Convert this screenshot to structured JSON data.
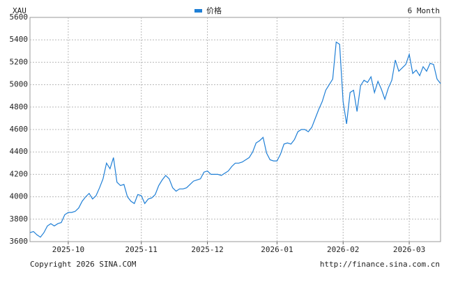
{
  "chart_data": {
    "type": "line",
    "title": "XAU",
    "period": "6 Month",
    "categories": [
      null,
      null,
      null,
      null,
      null,
      null,
      null,
      null,
      null,
      null,
      null,
      "2025-10",
      null,
      null,
      null,
      null,
      null,
      null,
      null,
      null,
      null,
      null,
      null,
      null,
      null,
      null,
      null,
      null,
      null,
      null,
      null,
      null,
      "2025-11",
      null,
      null,
      null,
      null,
      null,
      null,
      null,
      null,
      null,
      null,
      null,
      null,
      null,
      null,
      null,
      null,
      null,
      null,
      "2025-12",
      null,
      null,
      null,
      null,
      null,
      null,
      null,
      null,
      null,
      null,
      null,
      null,
      null,
      null,
      null,
      null,
      null,
      null,
      null,
      "2026-01",
      null,
      null,
      null,
      null,
      null,
      null,
      null,
      null,
      null,
      null,
      null,
      null,
      null,
      null,
      null,
      null,
      null,
      null,
      "2026-02",
      null,
      null,
      null,
      null,
      null,
      null,
      null,
      null,
      null,
      null,
      null,
      null,
      null,
      null,
      null,
      null,
      null,
      null,
      "2026-03",
      null,
      null,
      null,
      null,
      null,
      null,
      null,
      null,
      null
    ],
    "series": [
      {
        "name": "价格",
        "color": "#1f7fd6",
        "values": [
          3680,
          3690,
          3660,
          3640,
          3680,
          3740,
          3760,
          3740,
          3760,
          3770,
          3840,
          3860,
          3860,
          3870,
          3900,
          3960,
          4000,
          4030,
          3980,
          4010,
          4080,
          4160,
          4300,
          4250,
          4350,
          4130,
          4100,
          4110,
          4000,
          3960,
          3940,
          4020,
          4010,
          3940,
          3980,
          3990,
          4020,
          4100,
          4150,
          4190,
          4160,
          4080,
          4050,
          4070,
          4070,
          4080,
          4110,
          4140,
          4150,
          4160,
          4220,
          4230,
          4200,
          4200,
          4200,
          4190,
          4210,
          4230,
          4270,
          4300,
          4300,
          4310,
          4330,
          4350,
          4400,
          4480,
          4500,
          4530,
          4390,
          4330,
          4320,
          4320,
          4380,
          4470,
          4480,
          4470,
          4510,
          4580,
          4600,
          4600,
          4580,
          4620,
          4700,
          4780,
          4850,
          4950,
          5000,
          5050,
          5380,
          5360,
          4850,
          4650,
          4930,
          4950,
          4760,
          4990,
          5040,
          5020,
          5070,
          4930,
          5030,
          4960,
          4870,
          4970,
          5040,
          5220,
          5120,
          5150,
          5180,
          5270,
          5100,
          5130,
          5080,
          5160,
          5120,
          5190,
          5180,
          5050,
          5010
        ]
      }
    ],
    "ylim": [
      3600,
      5600
    ],
    "yticks": [
      3600,
      3800,
      4000,
      4200,
      4400,
      4600,
      4800,
      5000,
      5200,
      5400,
      5600
    ],
    "grid": true
  },
  "footer": {
    "copyright": "Copyright 2026 SINA.COM",
    "url": "http://finance.sina.com.cn"
  }
}
